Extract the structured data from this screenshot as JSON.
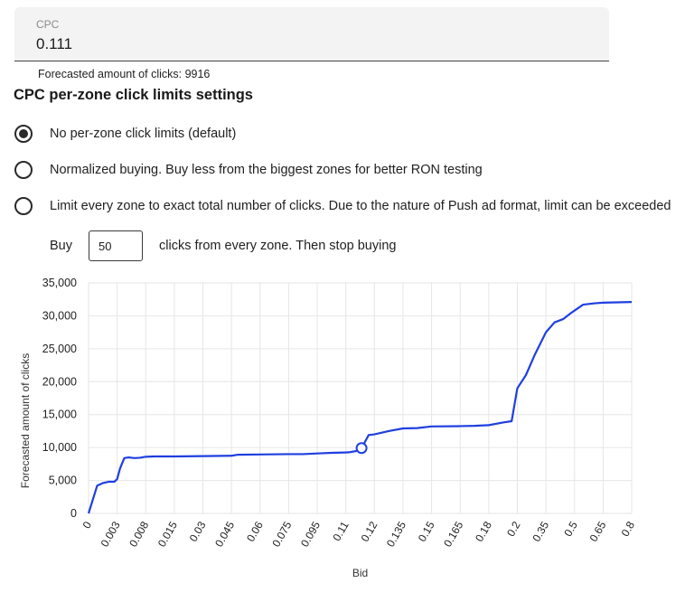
{
  "cpc": {
    "label": "CPC",
    "value": "0.111"
  },
  "forecast": {
    "text": "Forecasted amount of clicks: 9916"
  },
  "section": {
    "title": "CPC per-zone click limits settings"
  },
  "options": [
    {
      "label": "No per-zone click limits (default)",
      "selected": true
    },
    {
      "label": "Normalized buying. Buy less from the biggest zones for better RON testing",
      "selected": false
    },
    {
      "label": "Limit every zone to exact total number of clicks. Due to the nature of Push ad format, limit can be exceeded",
      "selected": false
    }
  ],
  "buy": {
    "prefix": "Buy",
    "value": "50",
    "suffix": "clicks from every zone. Then stop buying"
  },
  "colors": {
    "line": "#1f3fe0",
    "grid": "#e6e6e6"
  },
  "chart_data": {
    "type": "line",
    "xlabel": "Bid",
    "ylabel": "Forecasted amount of clicks",
    "ylim": [
      0,
      35000
    ],
    "y_ticks": [
      "0",
      "5,000",
      "10,000",
      "15,000",
      "20,000",
      "25,000",
      "30,000",
      "35,000"
    ],
    "x_ticks": [
      "0",
      "0.003",
      "0.008",
      "0.015",
      "0.03",
      "0.045",
      "0.06",
      "0.075",
      "0.095",
      "0.11",
      "0.12",
      "0.135",
      "0.15",
      "0.165",
      "0.18",
      "0.2",
      "0.35",
      "0.5",
      "0.65",
      "0.8"
    ],
    "x_positions": [
      0,
      1,
      2,
      3,
      4,
      5,
      6,
      7,
      8,
      9,
      10,
      11,
      12,
      13,
      14,
      15,
      16,
      17,
      18,
      19
    ],
    "series": [
      {
        "name": "Forecasted amount of clicks",
        "x": [
          0,
          0.3,
          0.5,
          0.7,
          0.9,
          1.0,
          1.1,
          1.25,
          1.4,
          1.6,
          1.8,
          2.0,
          2.3,
          3,
          4,
          5,
          5.2,
          6,
          7,
          7.5,
          8,
          8.5,
          9,
          9.15,
          9.4,
          9.55,
          9.8,
          10,
          10.5,
          11,
          11.5,
          12,
          13,
          13.5,
          14,
          14.5,
          14.8,
          15,
          15.3,
          15.6,
          16,
          16.3,
          16.6,
          16.9,
          17.3,
          17.7,
          18,
          18.5,
          19
        ],
        "y": [
          0,
          4200,
          4600,
          4800,
          4800,
          5200,
          6800,
          8400,
          8500,
          8400,
          8450,
          8600,
          8650,
          8650,
          8700,
          8750,
          8900,
          8950,
          9000,
          9000,
          9100,
          9200,
          9250,
          9300,
          9500,
          9916,
          11900,
          12000,
          12500,
          12900,
          12950,
          13200,
          13250,
          13300,
          13400,
          13800,
          14000,
          19000,
          21000,
          24000,
          27500,
          29000,
          29500,
          30500,
          31700,
          31900,
          32000,
          32050,
          32100
        ]
      }
    ],
    "marker": {
      "x": 9.55,
      "y": 9916
    }
  }
}
